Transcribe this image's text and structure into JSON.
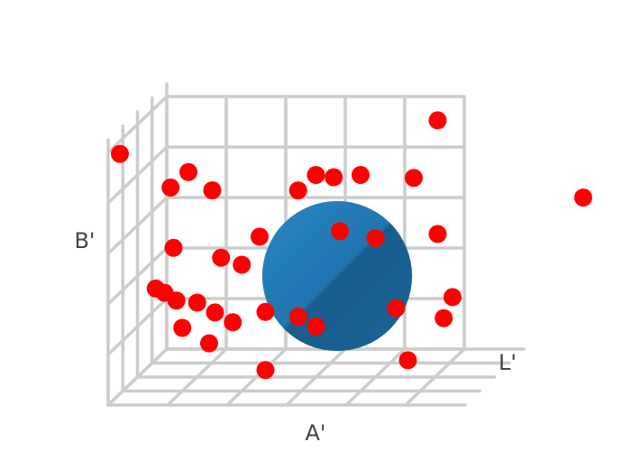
{
  "chart_data": {
    "type": "scatter",
    "title": "",
    "xlabel": "A'",
    "ylabel": "B'",
    "zlabel": "L'",
    "grid": true,
    "colors": {
      "points": "#ff0000",
      "sphere": "#1f77b4",
      "grid": "#cccccc",
      "labels": "#444444"
    },
    "sphere": {
      "center": [
        0.55,
        0.5,
        0.5
      ],
      "radius": 0.3
    },
    "points": [
      {
        "x": 0.0,
        "y": 0.95,
        "z": 0.8
      },
      {
        "x": 0.25,
        "y": 0.9,
        "z": 0.9
      },
      {
        "x": 0.2,
        "y": 0.85,
        "z": 0.95
      },
      {
        "x": 0.35,
        "y": 0.85,
        "z": 1.0
      },
      {
        "x": 0.95,
        "y": 0.95,
        "z": 0.2
      },
      {
        "x": 0.6,
        "y": 0.8,
        "z": 0.5
      },
      {
        "x": 0.55,
        "y": 0.75,
        "z": 0.55
      },
      {
        "x": 0.85,
        "y": 0.7,
        "z": 0.1
      },
      {
        "x": 0.75,
        "y": 0.8,
        "z": 0.5
      },
      {
        "x": 0.7,
        "y": 0.6,
        "z": 0.6
      },
      {
        "x": 1.4,
        "y": 0.6,
        "z": 0.0
      },
      {
        "x": 0.2,
        "y": 0.6,
        "z": 0.9
      },
      {
        "x": 0.35,
        "y": 0.55,
        "z": 0.85
      },
      {
        "x": 0.45,
        "y": 0.6,
        "z": 0.7
      },
      {
        "x": 0.4,
        "y": 0.5,
        "z": 0.75
      },
      {
        "x": 0.8,
        "y": 0.55,
        "z": 0.5
      },
      {
        "x": 0.95,
        "y": 0.5,
        "z": 0.2
      },
      {
        "x": 0.15,
        "y": 0.45,
        "z": 0.95
      },
      {
        "x": 0.15,
        "y": 0.4,
        "z": 0.8
      },
      {
        "x": 0.2,
        "y": 0.38,
        "z": 0.85
      },
      {
        "x": 0.25,
        "y": 0.35,
        "z": 0.75
      },
      {
        "x": 0.3,
        "y": 0.3,
        "z": 0.7
      },
      {
        "x": 0.2,
        "y": 0.25,
        "z": 0.75
      },
      {
        "x": 0.35,
        "y": 0.25,
        "z": 0.65
      },
      {
        "x": 0.3,
        "y": 0.2,
        "z": 0.8
      },
      {
        "x": 0.45,
        "y": 0.28,
        "z": 0.6
      },
      {
        "x": 0.55,
        "y": 0.25,
        "z": 0.55
      },
      {
        "x": 0.6,
        "y": 0.2,
        "z": 0.5
      },
      {
        "x": 0.85,
        "y": 0.25,
        "z": 0.4
      },
      {
        "x": 1.0,
        "y": 0.25,
        "z": 0.2
      },
      {
        "x": 1.0,
        "y": 0.2,
        "z": 0.35
      },
      {
        "x": 0.45,
        "y": 0.05,
        "z": 0.6
      },
      {
        "x": 0.85,
        "y": 0.0,
        "z": 0.2
      },
      {
        "x": 0.65,
        "y": 0.78,
        "z": 0.45
      }
    ]
  }
}
